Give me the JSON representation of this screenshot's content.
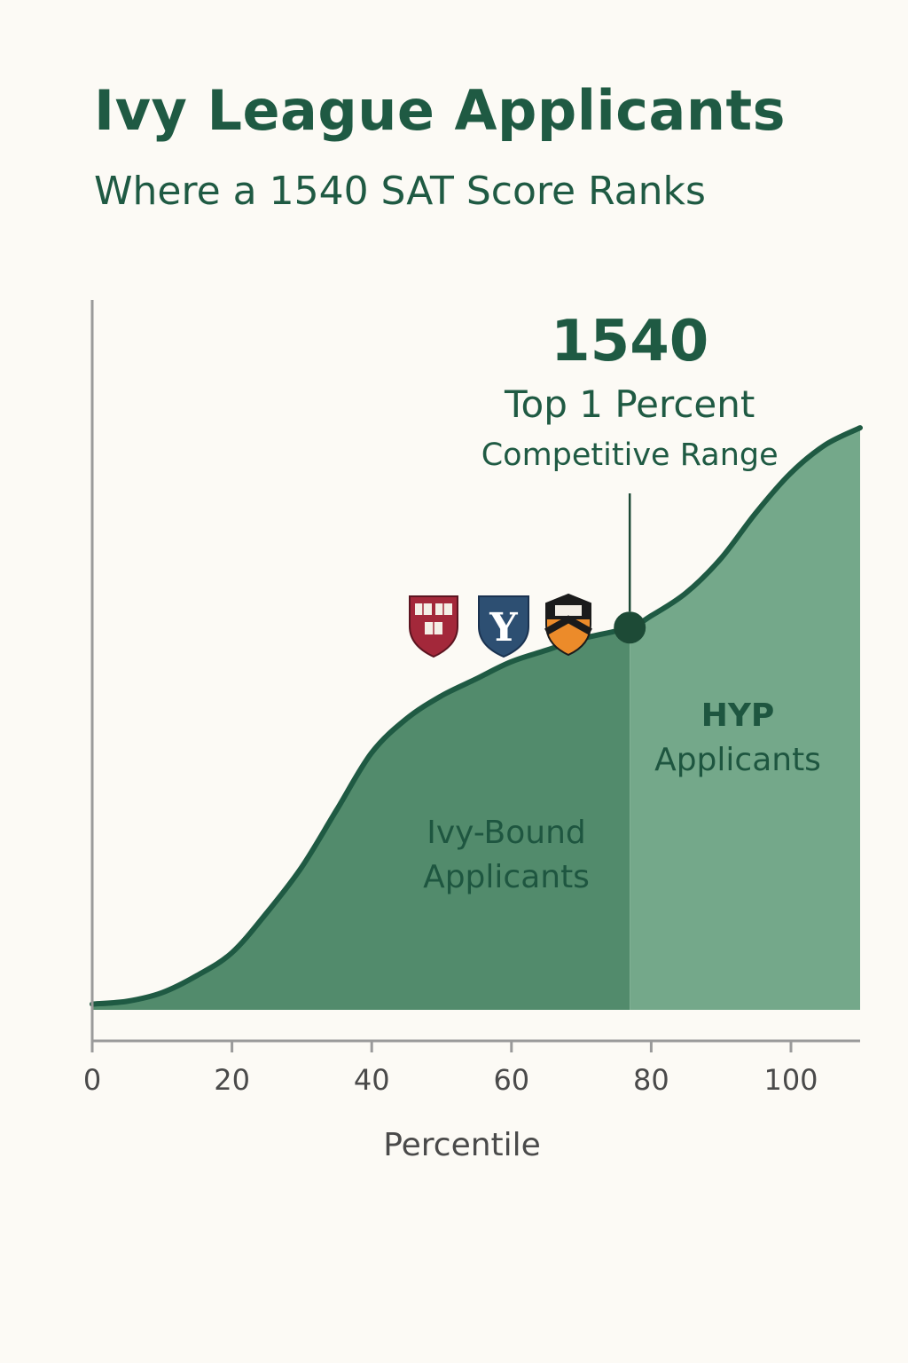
{
  "header": {
    "title": "Ivy League Applicants",
    "subtitle": "Where a 1540 SAT Score Ranks"
  },
  "chart_data": {
    "type": "area",
    "title": "Ivy League Applicants",
    "subtitle": "Where a 1540 SAT Score Ranks",
    "xlabel": "Percentile",
    "ylabel": "",
    "xlim": [
      0,
      110
    ],
    "ylim": [
      0,
      100
    ],
    "x_ticks": [
      0,
      20,
      40,
      60,
      80,
      100
    ],
    "grid": false,
    "legend": "none",
    "series": [
      {
        "x": [
          0,
          5,
          10,
          15,
          20,
          25,
          30,
          35,
          40,
          45,
          50,
          55,
          60,
          65,
          70,
          77,
          80,
          85,
          90,
          95,
          100,
          105,
          110
        ],
        "y": [
          1,
          1.5,
          3,
          6,
          10,
          17,
          25,
          35,
          45,
          51,
          55,
          58,
          61,
          63,
          65,
          67,
          69,
          73,
          79,
          87,
          94,
          99,
          102
        ]
      }
    ],
    "marker": {
      "x": 77,
      "y": 67,
      "value_label": "1540",
      "line1": "Top 1 Percent",
      "line2": "Competitive Range"
    },
    "regions": [
      {
        "from": 0,
        "to": 77,
        "label_line1": "Ivy-Bound",
        "label_line2": "Applicants",
        "color": "#528b6c"
      },
      {
        "from": 77,
        "to": 110,
        "label_line1": "HYP",
        "label_line2": "Applicants",
        "color": "#74a88a"
      }
    ],
    "icons": [
      "harvard-shield-icon",
      "yale-shield-icon",
      "princeton-shield-icon"
    ],
    "colors": {
      "curve": "#1f5a43",
      "axis": "#9a9a9a",
      "marker": "#1d4a36"
    }
  }
}
